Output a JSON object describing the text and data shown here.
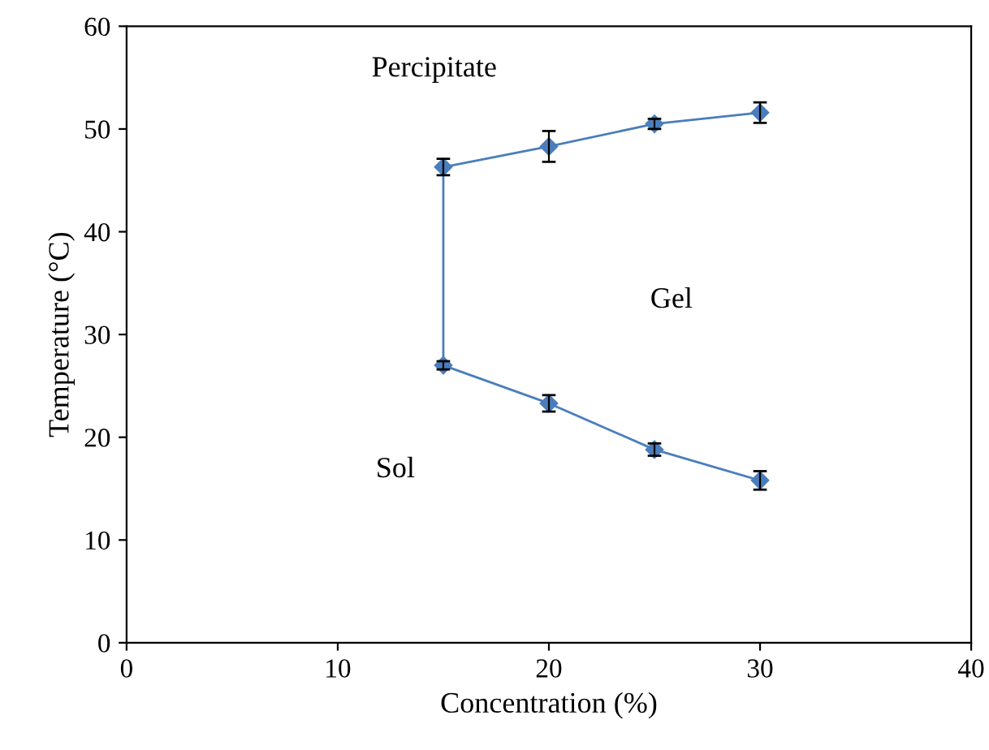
{
  "chart_data": {
    "type": "line",
    "xlabel": "Concentration (%)",
    "ylabel": "Temperature (°C)",
    "x": [
      30,
      25,
      20,
      15,
      15,
      20,
      25,
      30
    ],
    "series": [
      {
        "color": "#4a7ebb",
        "values": [
          15.8,
          18.8,
          23.3,
          27.0,
          46.3,
          48.3,
          50.5,
          51.6
        ],
        "errors": [
          0.9,
          0.6,
          0.8,
          0.4,
          0.8,
          1.5,
          0.5,
          1.0
        ]
      }
    ],
    "marker": "diamond",
    "line_style": "solid",
    "grid": false,
    "legend": false,
    "xlim": [
      0,
      40
    ],
    "xticks": [
      0,
      10,
      20,
      30,
      40
    ],
    "ylim": [
      0,
      60
    ],
    "yticks": [
      0,
      10,
      20,
      30,
      40,
      50,
      60
    ],
    "annotations": [
      "Percipitate",
      "Gel",
      "Sol"
    ]
  }
}
